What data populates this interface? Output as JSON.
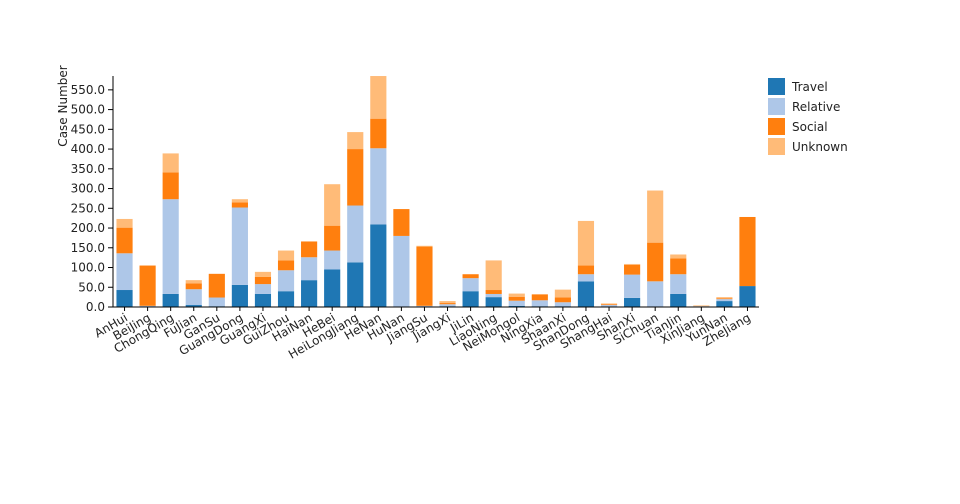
{
  "chart_data": {
    "type": "bar",
    "stacked": true,
    "title": "",
    "xlabel": "",
    "ylabel": "Case Number",
    "ylim": [
      0,
      580
    ],
    "yticks": [
      0,
      50,
      100,
      150,
      200,
      250,
      300,
      350,
      400,
      450,
      500,
      550
    ],
    "ytick_labels": [
      "0.0",
      "50.0",
      "100.0",
      "150.0",
      "200.0",
      "250.0",
      "300.0",
      "350.0",
      "400.0",
      "450.0",
      "500.0",
      "550.0"
    ],
    "grid": false,
    "legend_position": "top-right",
    "categories": [
      "AnHui",
      "BeiJing",
      "ChongQing",
      "FuJian",
      "GanSu",
      "GuangDong",
      "GuangXi",
      "GuiZhou",
      "HaiNan",
      "HeBei",
      "HeiLongJiang",
      "HeNan",
      "HuNan",
      "JiangSu",
      "JiangXi",
      "JiLin",
      "LiaoNing",
      "NeiMongol",
      "NingXia",
      "ShaanXi",
      "ShanDong",
      "ShangHai",
      "ShanXi",
      "SiChuan",
      "TianJin",
      "XinJiang",
      "YunNan",
      "ZheJiang"
    ],
    "series": [
      {
        "name": "Travel",
        "color": "#1f77b4",
        "values": [
          43,
          0,
          33,
          5,
          2,
          56,
          33,
          40,
          68,
          95,
          113,
          209,
          0,
          0,
          2,
          40,
          25,
          3,
          2,
          2,
          65,
          0,
          23,
          0,
          33,
          0,
          15,
          53
        ]
      },
      {
        "name": "Relative",
        "color": "#aec7e8",
        "values": [
          93,
          3,
          240,
          40,
          22,
          196,
          25,
          53,
          58,
          48,
          144,
          193,
          180,
          3,
          5,
          33,
          8,
          13,
          15,
          10,
          18,
          5,
          59,
          65,
          50,
          2,
          5,
          0
        ]
      },
      {
        "name": "Social",
        "color": "#ff7f0e",
        "values": [
          65,
          102,
          68,
          15,
          60,
          13,
          18,
          25,
          40,
          63,
          143,
          75,
          68,
          150,
          3,
          10,
          10,
          10,
          15,
          12,
          22,
          2,
          25,
          98,
          40,
          0,
          2,
          175
        ]
      },
      {
        "name": "Unknown",
        "color": "#ffbb78",
        "values": [
          22,
          0,
          48,
          8,
          0,
          8,
          13,
          25,
          0,
          105,
          43,
          108,
          0,
          2,
          5,
          0,
          75,
          8,
          0,
          20,
          113,
          2,
          2,
          132,
          10,
          2,
          3,
          0
        ]
      }
    ]
  }
}
